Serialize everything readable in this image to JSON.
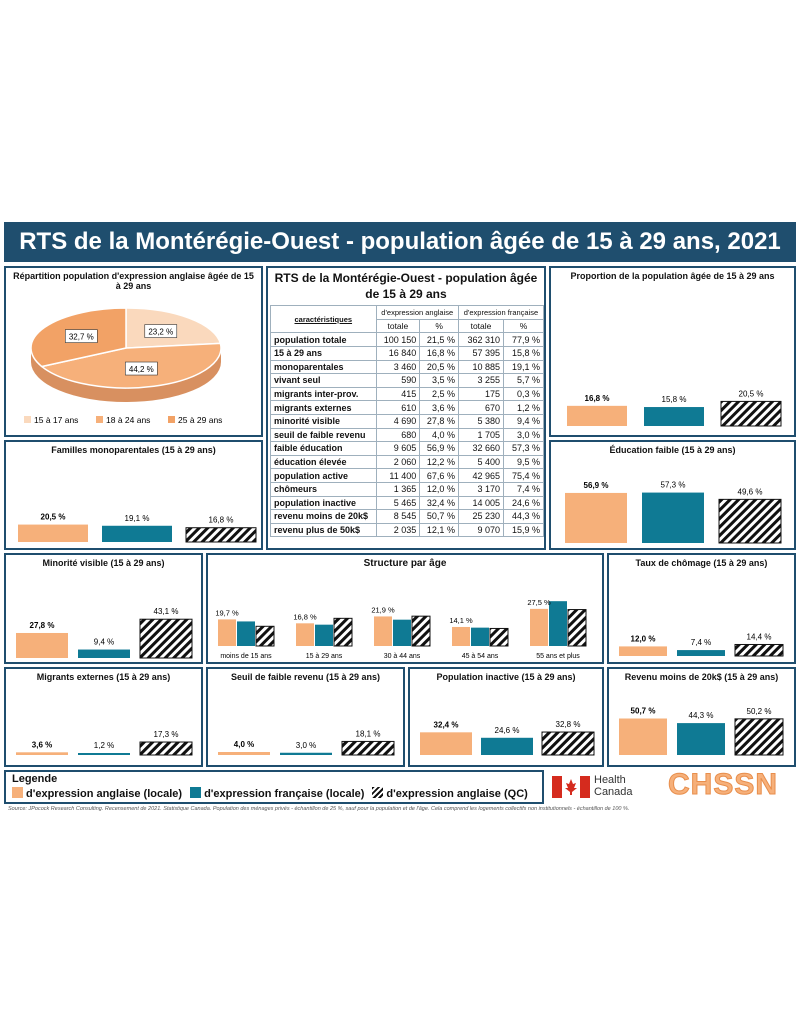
{
  "title": "RTS de la Montérégie-Ouest - population âgée de 15 à 29 ans, 2021",
  "colors": {
    "anglaise_locale": "#f6b07a",
    "francaise_locale": "#0f7a94",
    "anglaise_qc": "hatched black/white",
    "frame": "#1f4e6e"
  },
  "pie": {
    "title": "Répartition population d'expression anglaise âgée de 15 à 29 ans",
    "slices": [
      {
        "label": "15 à 17 ans",
        "value": 23.2,
        "text": "23,2 %"
      },
      {
        "label": "18 à 24 ans",
        "value": 44.2,
        "text": "44,2 %"
      },
      {
        "label": "25 à 29 ans",
        "value": 32.7,
        "text": "32,7 %"
      }
    ]
  },
  "table": {
    "title": "RTS de la Montérégie-Ouest - population âgée de 15 à 29 ans",
    "group_headers": [
      "d'expression anglaise",
      "d'expression française"
    ],
    "col_header": "caractéristiques",
    "sub_headers": [
      "totale",
      "%",
      "totale",
      "%"
    ],
    "rows": [
      [
        "population totale",
        "100 150",
        "21,5 %",
        "362 310",
        "77,9 %"
      ],
      [
        "15 à 29 ans",
        "16 840",
        "16,8 %",
        "57 395",
        "15,8 %"
      ],
      [
        "monoparentales",
        "3 460",
        "20,5 %",
        "10 885",
        "19,1 %"
      ],
      [
        "vivant seul",
        "590",
        "3,5 %",
        "3 255",
        "5,7 %"
      ],
      [
        "migrants inter-prov.",
        "415",
        "2,5 %",
        "175",
        "0,3 %"
      ],
      [
        "migrants externes",
        "610",
        "3,6 %",
        "670",
        "1,2 %"
      ],
      [
        "minorité visible",
        "4 690",
        "27,8 %",
        "5 380",
        "9,4 %"
      ],
      [
        "seuil de faible revenu",
        "680",
        "4,0 %",
        "1 705",
        "3,0 %"
      ],
      [
        "faible éducation",
        "9 605",
        "56,9 %",
        "32 660",
        "57,3 %"
      ],
      [
        "éducation élevée",
        "2 060",
        "12,2 %",
        "5 400",
        "9,5 %"
      ],
      [
        "population active",
        "11 400",
        "67,6 %",
        "42 965",
        "75,4 %"
      ],
      [
        "chômeurs",
        "1 365",
        "12,0 %",
        "3 170",
        "7,4 %"
      ],
      [
        "population inactive",
        "5 465",
        "32,4 %",
        "14 005",
        "24,6 %"
      ],
      [
        "revenu moins de 20k$",
        "8 545",
        "50,7 %",
        "25 230",
        "44,3 %"
      ],
      [
        "revenu plus de 50k$",
        "2 035",
        "12,1 %",
        "9 070",
        "15,9 %"
      ]
    ]
  },
  "chart_data": [
    {
      "id": "proportion",
      "type": "bar",
      "title": "Proportion de la population âgée de 15 à 29 ans",
      "values": [
        16.8,
        15.8,
        20.5
      ],
      "labels": [
        "16,8 %",
        "15,8 %",
        "20,5 %"
      ]
    },
    {
      "id": "familles",
      "type": "bar",
      "title": "Familles monoparentales (15 à 29 ans)",
      "values": [
        20.5,
        19.1,
        16.8
      ],
      "labels": [
        "20,5 %",
        "19,1 %",
        "16,8 %"
      ]
    },
    {
      "id": "education",
      "type": "bar",
      "title": "Éducation faible (15 à 29 ans)",
      "values": [
        56.9,
        57.3,
        49.6
      ],
      "labels": [
        "56,9 %",
        "57,3 %",
        "49,6 %"
      ]
    },
    {
      "id": "minorite",
      "type": "bar",
      "title": "Minorité visible (15 à 29 ans)",
      "values": [
        27.8,
        9.4,
        43.1
      ],
      "labels": [
        "27,8 %",
        "9,4 %",
        "43,1 %"
      ]
    },
    {
      "id": "structure",
      "type": "bar",
      "title": "Structure par âge",
      "categories": [
        "moins de 15 ans",
        "15 à 29 ans",
        "30 à 44 ans",
        "45 à 54 ans",
        "55 ans et plus"
      ],
      "series": [
        {
          "name": "d'expression anglaise (locale)",
          "values": [
            19.7,
            16.8,
            21.9,
            14.1,
            27.5
          ]
        },
        {
          "name": "d'expression française (locale)",
          "values": [
            18.2,
            15.8,
            19.5,
            13.6,
            33.2
          ]
        },
        {
          "name": "d'expression anglaise (QC)",
          "values": [
            14.6,
            20.5,
            22.1,
            13.0,
            27.0
          ]
        }
      ],
      "labels": [
        "19,7 %",
        "16,8 %",
        "21,9 %",
        "14,1 %",
        "27,5 %"
      ]
    },
    {
      "id": "chomage",
      "type": "bar",
      "title": "Taux de chômage (15 à 29 ans)",
      "values": [
        12.0,
        7.4,
        14.4
      ],
      "labels": [
        "12,0 %",
        "7,4 %",
        "14,4 %"
      ]
    },
    {
      "id": "migrants",
      "type": "bar",
      "title": "Migrants externes (15 à 29 ans)",
      "values": [
        3.6,
        1.2,
        17.3
      ],
      "labels": [
        "3,6 %",
        "1,2 %",
        "17,3 %"
      ]
    },
    {
      "id": "seuil",
      "type": "bar",
      "title": "Seuil de faible revenu (15 à 29 ans)",
      "values": [
        4.0,
        3.0,
        18.1
      ],
      "labels": [
        "4,0 %",
        "3,0 %",
        "18,1 %"
      ]
    },
    {
      "id": "inactive",
      "type": "bar",
      "title": "Population inactive (15 à 29 ans)",
      "values": [
        32.4,
        24.6,
        32.8
      ],
      "labels": [
        "32,4 %",
        "24,6 %",
        "32,8 %"
      ]
    },
    {
      "id": "revenu",
      "type": "bar",
      "title": "Revenu moins de 20k$ (15 à 29 ans)",
      "values": [
        50.7,
        44.3,
        50.2
      ],
      "labels": [
        "50,7 %",
        "44,3 %",
        "50,2 %"
      ]
    }
  ],
  "legend": {
    "title": "Legende",
    "items": [
      "d'expression anglaise (locale)",
      "d'expression française (locale)",
      "d'expression anglaise (QC)"
    ]
  },
  "logos": {
    "health_canada": [
      "Health",
      "Canada"
    ],
    "chssn": "CHSSN"
  },
  "footnote": "Source: JPocock Research Consulting. Recensement de 2021. Statistique Canada. Population des ménages privés - échantillon de 25 %, sauf pour la population et de l'âge. Cela comprend les logements collectifs non institutionnels - échantillon de 100 %."
}
